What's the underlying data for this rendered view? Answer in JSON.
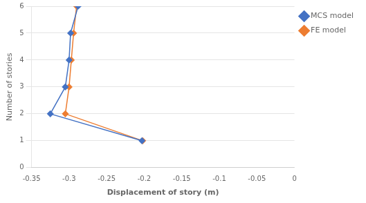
{
  "chart_data": {
    "type": "line",
    "xlabel": "Displacement of story (m)",
    "ylabel": "Number of stories",
    "series": [
      {
        "name": "MCS model",
        "color": "#4472C4",
        "marker": "diamond",
        "x": [
          -0.203,
          -0.325,
          -0.305,
          -0.3,
          -0.298,
          -0.288
        ],
        "values": [
          1,
          2,
          3,
          4,
          5,
          6
        ]
      },
      {
        "name": "FE model",
        "color": "#ED7D31",
        "marker": "diamond",
        "x": [
          -0.202,
          -0.305,
          -0.3,
          -0.297,
          -0.294,
          -0.29
        ],
        "values": [
          1,
          2,
          3,
          4,
          5,
          6
        ]
      }
    ],
    "xlim": [
      -0.35,
      0.0
    ],
    "xticks": [
      -0.35,
      -0.3,
      -0.25,
      -0.2,
      -0.15,
      -0.1,
      -0.05,
      0.0
    ],
    "ylim": [
      0,
      6
    ],
    "yticks": [
      0,
      1,
      2,
      3,
      4,
      5,
      6
    ],
    "grid": "y",
    "legend": "right"
  }
}
